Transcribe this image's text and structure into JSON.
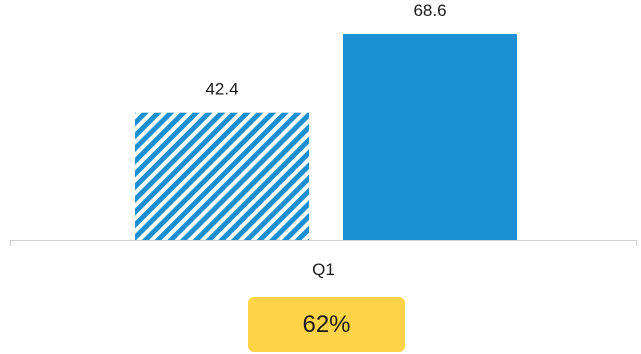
{
  "chart_data": {
    "type": "bar",
    "categories": [
      "Q1"
    ],
    "series": [
      {
        "values": [
          42.4
        ],
        "color": "#1a8fd1",
        "pattern": "diagonal-hatch"
      },
      {
        "values": [
          68.6
        ],
        "color": "#1a8fd1",
        "pattern": "solid"
      }
    ],
    "value_labels": [
      "42.4",
      "68.6"
    ],
    "ylim": [
      0,
      80
    ],
    "grid": false,
    "legend": "none"
  },
  "badge": {
    "text": "62%",
    "color": "#ffd347"
  },
  "colors": {
    "axis": "#d0d0d0",
    "text": "#1a1a1a"
  }
}
